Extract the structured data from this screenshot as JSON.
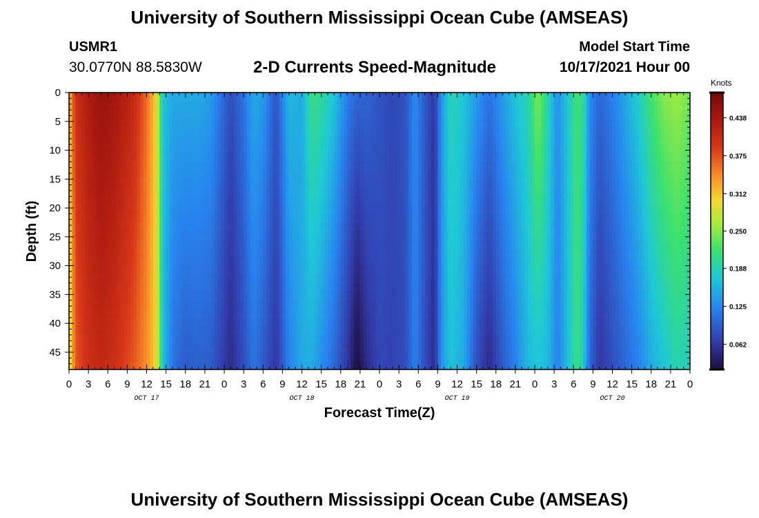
{
  "header": {
    "title": "University of Southern Mississippi Ocean Cube (AMSEAS)",
    "station_id": "USMR1",
    "coordinates": "30.0770N  88.5830W",
    "subtitle": "2-D Currents Speed-Magnitude",
    "model_label": "Model Start Time",
    "model_time": "10/17/2021 Hour 00"
  },
  "footer": {
    "title": "University of Southern Mississippi Ocean Cube (AMSEAS)"
  },
  "chart_data": {
    "type": "heatmap",
    "title": "2-D Currents Speed-Magnitude",
    "xlabel": "Forecast Time(Z)",
    "ylabel": "Depth (ft)",
    "units": "Knots",
    "x_range_hours": [
      0,
      96
    ],
    "y_range_ft": [
      0,
      48
    ],
    "y_inverted": true,
    "x_tick_labels": [
      "0",
      "3",
      "6",
      "9",
      "12",
      "15",
      "18",
      "21",
      "0",
      "3",
      "6",
      "9",
      "12",
      "15",
      "18",
      "21",
      "0",
      "3",
      "6",
      "9",
      "12",
      "15",
      "18",
      "21",
      "0",
      "3",
      "6",
      "9",
      "12",
      "15",
      "18",
      "21",
      "0"
    ],
    "date_labels": [
      {
        "label": "OCT 17",
        "hour": 12
      },
      {
        "label": "OCT 18",
        "hour": 36
      },
      {
        "label": "OCT 19",
        "hour": 60
      },
      {
        "label": "OCT 20",
        "hour": 84
      }
    ],
    "y_tick_labels": [
      "0",
      "5",
      "10",
      "15",
      "20",
      "25",
      "30",
      "35",
      "40",
      "45"
    ],
    "y_tick_values": [
      0,
      5,
      10,
      15,
      20,
      25,
      30,
      35,
      40,
      45
    ],
    "colorbar_labels": [
      "0.438",
      "0.375",
      "0.312",
      "0.250",
      "0.188",
      "0.125",
      "0.062"
    ],
    "colorbar_values": [
      0.438,
      0.375,
      0.312,
      0.25,
      0.188,
      0.125,
      0.062
    ],
    "color_range": [
      0.02,
      0.48
    ],
    "speed_profile": [
      {
        "hour": 0,
        "surface": 0.31,
        "bottom": 0.27
      },
      {
        "hour": 1,
        "surface": 0.4,
        "bottom": 0.37
      },
      {
        "hour": 3,
        "surface": 0.43,
        "bottom": 0.4
      },
      {
        "hour": 5,
        "surface": 0.45,
        "bottom": 0.41
      },
      {
        "hour": 7,
        "surface": 0.44,
        "bottom": 0.4
      },
      {
        "hour": 10,
        "surface": 0.41,
        "bottom": 0.37
      },
      {
        "hour": 12,
        "surface": 0.36,
        "bottom": 0.34
      },
      {
        "hour": 13.5,
        "surface": 0.3,
        "bottom": 0.3
      },
      {
        "hour": 14.5,
        "surface": 0.17,
        "bottom": 0.17
      },
      {
        "hour": 16,
        "surface": 0.15,
        "bottom": 0.11
      },
      {
        "hour": 18,
        "surface": 0.15,
        "bottom": 0.09
      },
      {
        "hour": 20,
        "surface": 0.15,
        "bottom": 0.095
      },
      {
        "hour": 22,
        "surface": 0.14,
        "bottom": 0.09
      },
      {
        "hour": 23.5,
        "surface": 0.11,
        "bottom": 0.07
      },
      {
        "hour": 25,
        "surface": 0.08,
        "bottom": 0.05
      },
      {
        "hour": 27,
        "surface": 0.11,
        "bottom": 0.08
      },
      {
        "hour": 28.5,
        "surface": 0.15,
        "bottom": 0.11
      },
      {
        "hour": 30,
        "surface": 0.14,
        "bottom": 0.09
      },
      {
        "hour": 32,
        "surface": 0.085,
        "bottom": 0.06
      },
      {
        "hour": 34,
        "surface": 0.16,
        "bottom": 0.12
      },
      {
        "hour": 36,
        "surface": 0.15,
        "bottom": 0.15
      },
      {
        "hour": 37.5,
        "surface": 0.21,
        "bottom": 0.15
      },
      {
        "hour": 39,
        "surface": 0.2,
        "bottom": 0.13
      },
      {
        "hour": 41,
        "surface": 0.17,
        "bottom": 0.1
      },
      {
        "hour": 43,
        "surface": 0.12,
        "bottom": 0.06
      },
      {
        "hour": 44.5,
        "surface": 0.1,
        "bottom": 0.02
      },
      {
        "hour": 46,
        "surface": 0.1,
        "bottom": 0.05
      },
      {
        "hour": 48,
        "surface": 0.085,
        "bottom": 0.075
      },
      {
        "hour": 50,
        "surface": 0.075,
        "bottom": 0.07
      },
      {
        "hour": 52,
        "surface": 0.085,
        "bottom": 0.08
      },
      {
        "hour": 53.5,
        "surface": 0.13,
        "bottom": 0.12
      },
      {
        "hour": 55,
        "surface": 0.09,
        "bottom": 0.08
      },
      {
        "hour": 56.5,
        "surface": 0.06,
        "bottom": 0.05
      },
      {
        "hour": 57.5,
        "surface": 0.13,
        "bottom": 0.13
      },
      {
        "hour": 59,
        "surface": 0.19,
        "bottom": 0.17
      },
      {
        "hour": 61,
        "surface": 0.17,
        "bottom": 0.15
      },
      {
        "hour": 63,
        "surface": 0.14,
        "bottom": 0.08
      },
      {
        "hour": 65,
        "surface": 0.11,
        "bottom": 0.05
      },
      {
        "hour": 67,
        "surface": 0.14,
        "bottom": 0.09
      },
      {
        "hour": 69,
        "surface": 0.17,
        "bottom": 0.12
      },
      {
        "hour": 71,
        "surface": 0.19,
        "bottom": 0.16
      },
      {
        "hour": 72.5,
        "surface": 0.25,
        "bottom": 0.17
      },
      {
        "hour": 74,
        "surface": 0.19,
        "bottom": 0.16
      },
      {
        "hour": 75.5,
        "surface": 0.13,
        "bottom": 0.12
      },
      {
        "hour": 77,
        "surface": 0.17,
        "bottom": 0.16
      },
      {
        "hour": 78.5,
        "surface": 0.22,
        "bottom": 0.21
      },
      {
        "hour": 79.5,
        "surface": 0.2,
        "bottom": 0.18
      },
      {
        "hour": 80.5,
        "surface": 0.13,
        "bottom": 0.1
      },
      {
        "hour": 82,
        "surface": 0.1,
        "bottom": 0.06
      },
      {
        "hour": 84,
        "surface": 0.12,
        "bottom": 0.08
      },
      {
        "hour": 86,
        "surface": 0.15,
        "bottom": 0.1
      },
      {
        "hour": 88,
        "surface": 0.18,
        "bottom": 0.12
      },
      {
        "hour": 90,
        "surface": 0.22,
        "bottom": 0.15
      },
      {
        "hour": 92,
        "surface": 0.25,
        "bottom": 0.17
      },
      {
        "hour": 94,
        "surface": 0.26,
        "bottom": 0.19
      },
      {
        "hour": 96,
        "surface": 0.24,
        "bottom": 0.18
      }
    ]
  }
}
